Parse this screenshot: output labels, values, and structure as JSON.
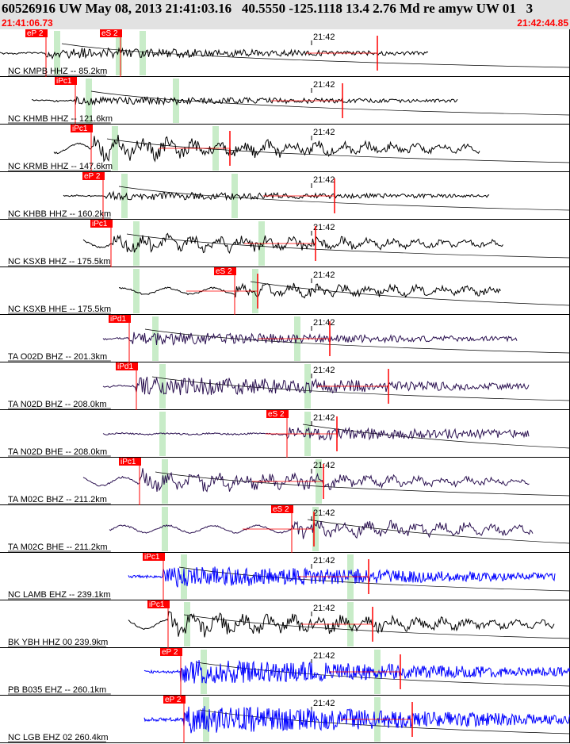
{
  "header": {
    "title": "60526916 UW May 08, 2013 21:41:03.16   40.5550 -125.1118 13.4 2.76 Md re amyw UW 01   3",
    "start_time": "21:41:06.73",
    "end_time": "21:42:44.85"
  },
  "colors": {
    "header_bg": "#e2e2e2",
    "pick": "#ff0000",
    "window": "#c8ecc8",
    "black": "#000000",
    "purple": "#2a1050",
    "blue": "#0000ff"
  },
  "traces": [
    {
      "label": "NC KMPB HHZ -- 85.2km",
      "tick": "21:42",
      "color": "black",
      "picks": [
        "eP 2",
        "eS 2"
      ],
      "amp": 0.25
    },
    {
      "label": "NC KHMB HHZ -- 121.6km",
      "tick": "21:42",
      "color": "black",
      "picks": [
        "iPc1"
      ],
      "amp": 0.2
    },
    {
      "label": "NC KRMB HHZ -- 147.6km",
      "tick": "21:42",
      "color": "black",
      "picks": [
        "iPc1"
      ],
      "amp": 0.6
    },
    {
      "label": "NC KHBB HHZ -- 160.2km",
      "tick": "21:42",
      "color": "black",
      "picks": [
        "eP 2"
      ],
      "amp": 0.2
    },
    {
      "label": "NC KSXB HHZ -- 175.5km",
      "tick": "21:42",
      "color": "black",
      "picks": [
        "iPc1"
      ],
      "amp": 0.5
    },
    {
      "label": "NC KSXB HHE -- 175.5km",
      "tick": "21:42",
      "color": "black",
      "picks": [
        "eS 2"
      ],
      "amp": 0.4
    },
    {
      "label": "TA O02D BHZ -- 201.3km",
      "tick": "21:42",
      "color": "purple",
      "picks": [
        "iPd1"
      ],
      "amp": 0.3
    },
    {
      "label": "TA N02D BHZ -- 208.0km",
      "tick": "21:42",
      "color": "purple",
      "picks": [
        "iPd1"
      ],
      "amp": 0.45
    },
    {
      "label": "TA N02D BHE -- 208.0km",
      "tick": "21:42",
      "color": "purple",
      "picks": [
        "eS 2"
      ],
      "amp": 0.3
    },
    {
      "label": "TA M02C BHZ -- 211.2km",
      "tick": "21:42",
      "color": "purple",
      "picks": [
        "iPc1"
      ],
      "amp": 0.55
    },
    {
      "label": "TA M02C BHE -- 211.2km",
      "tick": "21:42",
      "color": "purple",
      "picks": [
        "eS 2"
      ],
      "amp": 0.45
    },
    {
      "label": "NC LAMB EHZ -- 239.1km",
      "tick": "21:42",
      "color": "blue",
      "picks": [
        "iPc1"
      ],
      "amp": 0.5
    },
    {
      "label": "BK YBH HHZ 00 239.9km",
      "tick": "21:42",
      "color": "black",
      "picks": [
        "iPc1"
      ],
      "amp": 0.6
    },
    {
      "label": "PB B035 EHZ -- 260.1km",
      "tick": "21:42",
      "color": "blue",
      "picks": [
        "eP 2"
      ],
      "amp": 0.55
    },
    {
      "label": "NC LGB EHZ 02 260.4km",
      "tick": "21:42",
      "color": "blue",
      "picks": [
        "eP 2"
      ],
      "amp": 0.65
    }
  ]
}
